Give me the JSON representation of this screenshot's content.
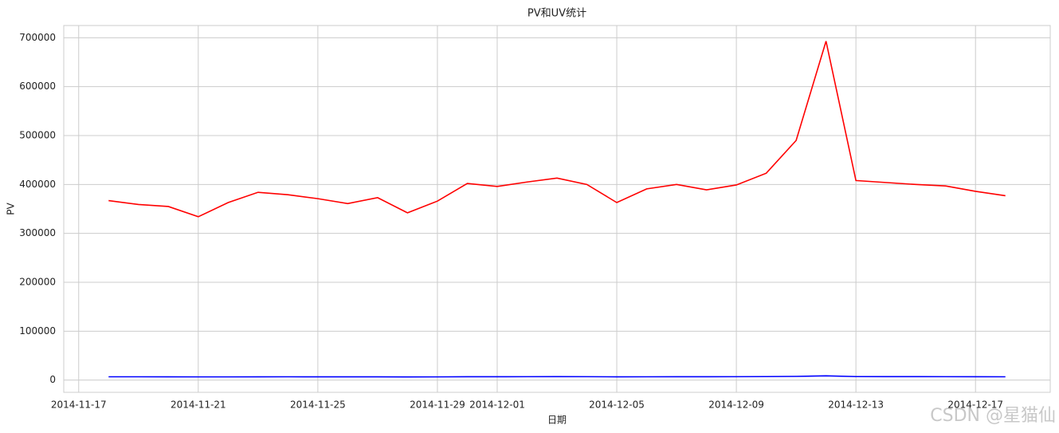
{
  "chart_data": {
    "type": "line",
    "title": "PV和UV统计",
    "x_label": "日期",
    "y_label": "PV",
    "x": [
      "2014-11-18",
      "2014-11-19",
      "2014-11-20",
      "2014-11-21",
      "2014-11-22",
      "2014-11-23",
      "2014-11-24",
      "2014-11-25",
      "2014-11-26",
      "2014-11-27",
      "2014-11-28",
      "2014-11-29",
      "2014-11-30",
      "2014-12-01",
      "2014-12-02",
      "2014-12-03",
      "2014-12-04",
      "2014-12-05",
      "2014-12-06",
      "2014-12-07",
      "2014-12-08",
      "2014-12-09",
      "2014-12-10",
      "2014-12-11",
      "2014-12-12",
      "2014-12-13",
      "2014-12-14",
      "2014-12-15",
      "2014-12-16",
      "2014-12-17",
      "2014-12-18"
    ],
    "series": [
      {
        "color": "#ff0000",
        "values": [
          367000,
          359000,
          355000,
          334000,
          363000,
          384000,
          379000,
          371000,
          361000,
          373000,
          342000,
          366000,
          402000,
          396000,
          405000,
          413000,
          400000,
          363000,
          391000,
          400000,
          389000,
          399000,
          423000,
          490000,
          693000,
          408000,
          404000,
          400000,
          397000,
          386000,
          377000
        ]
      },
      {
        "color": "#0000ff",
        "values": [
          6800,
          6800,
          6700,
          6600,
          6600,
          6700,
          6800,
          6700,
          6700,
          6700,
          6500,
          6600,
          6900,
          6900,
          7000,
          7100,
          7000,
          6700,
          6800,
          6900,
          6900,
          7000,
          7200,
          7600,
          8800,
          7200,
          7100,
          7100,
          7000,
          6900,
          6800
        ]
      }
    ],
    "xlim": [
      "2014-11-16T12:00:00Z",
      "2014-12-19T12:00:00Z"
    ],
    "xticks": [
      "2014-11-17",
      "2014-11-21",
      "2014-11-25",
      "2014-11-29",
      "2014-12-01",
      "2014-12-05",
      "2014-12-09",
      "2014-12-13",
      "2014-12-17"
    ],
    "ylim": [
      -25000,
      725000
    ],
    "yticks": [
      0,
      100000,
      200000,
      300000,
      400000,
      500000,
      600000,
      700000
    ],
    "grid": true,
    "watermark": "CSDN @星猫仙"
  }
}
